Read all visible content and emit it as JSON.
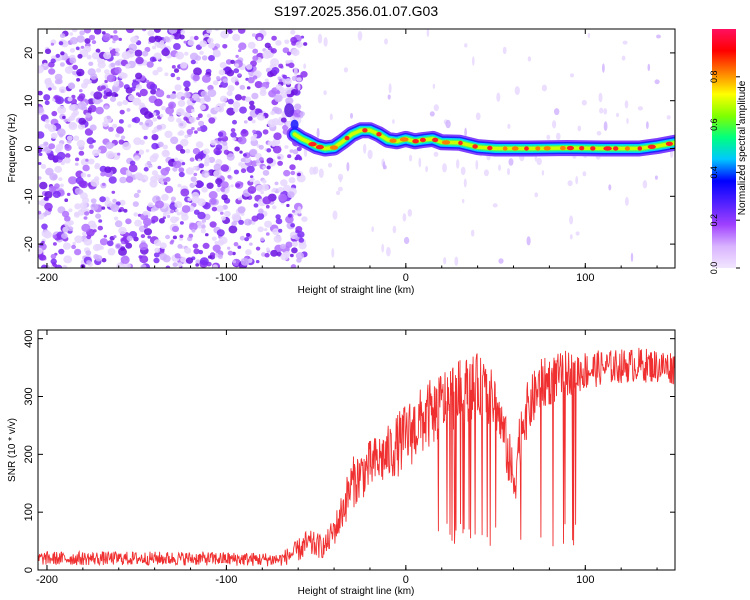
{
  "title": "S197.2025.356.01.07.G03",
  "chart_data": [
    {
      "type": "heatmap",
      "xlabel": "Height of straight line (km)",
      "ylabel": "Frequency (Hz)",
      "xlim": [
        -205,
        150
      ],
      "ylim": [
        -25,
        25
      ],
      "xticks": [
        -200,
        -100,
        0,
        100
      ],
      "yticks": [
        -20,
        -10,
        0,
        10,
        20
      ],
      "noise_region_x": [
        -205,
        -62
      ],
      "ridge": [
        {
          "x": -62,
          "y": 3
        },
        {
          "x": -58,
          "y": 2
        },
        {
          "x": -55,
          "y": 1.5
        },
        {
          "x": -50,
          "y": 0.5
        },
        {
          "x": -45,
          "y": 0
        },
        {
          "x": -40,
          "y": 0.2
        },
        {
          "x": -35,
          "y": 1.5
        },
        {
          "x": -30,
          "y": 3
        },
        {
          "x": -25,
          "y": 3.8
        },
        {
          "x": -20,
          "y": 3.8
        },
        {
          "x": -15,
          "y": 3
        },
        {
          "x": -10,
          "y": 1.8
        },
        {
          "x": -5,
          "y": 1.5
        },
        {
          "x": 0,
          "y": 2
        },
        {
          "x": 5,
          "y": 1.5
        },
        {
          "x": 10,
          "y": 1.8
        },
        {
          "x": 15,
          "y": 2
        },
        {
          "x": 20,
          "y": 1.3
        },
        {
          "x": 30,
          "y": 1.2
        },
        {
          "x": 40,
          "y": 0.3
        },
        {
          "x": 50,
          "y": 0
        },
        {
          "x": 70,
          "y": 0
        },
        {
          "x": 90,
          "y": 0.1
        },
        {
          "x": 110,
          "y": 0
        },
        {
          "x": 130,
          "y": 0
        },
        {
          "x": 140,
          "y": 0.5
        },
        {
          "x": 150,
          "y": 1.2
        }
      ]
    },
    {
      "type": "line",
      "xlabel": "Height of straight line (km)",
      "ylabel": "SNR (10 * v/v)",
      "xlim": [
        -205,
        150
      ],
      "ylim": [
        0,
        415
      ],
      "xticks": [
        -200,
        -100,
        0,
        100
      ],
      "yticks": [
        0,
        100,
        200,
        300,
        400
      ],
      "color": "#f03030",
      "envelope": [
        {
          "x": -205,
          "y": 20,
          "spread": 12
        },
        {
          "x": -120,
          "y": 20,
          "spread": 12
        },
        {
          "x": -70,
          "y": 18,
          "spread": 12
        },
        {
          "x": -62,
          "y": 30,
          "spread": 18
        },
        {
          "x": -55,
          "y": 45,
          "spread": 25
        },
        {
          "x": -45,
          "y": 40,
          "spread": 20
        },
        {
          "x": -38,
          "y": 80,
          "spread": 30
        },
        {
          "x": -30,
          "y": 150,
          "spread": 45
        },
        {
          "x": -20,
          "y": 180,
          "spread": 45
        },
        {
          "x": -10,
          "y": 200,
          "spread": 50
        },
        {
          "x": 0,
          "y": 230,
          "spread": 60
        },
        {
          "x": 10,
          "y": 260,
          "spread": 60
        },
        {
          "x": 25,
          "y": 300,
          "spread": 60
        },
        {
          "x": 40,
          "y": 320,
          "spread": 55
        },
        {
          "x": 50,
          "y": 290,
          "spread": 50
        },
        {
          "x": 55,
          "y": 230,
          "spread": 45
        },
        {
          "x": 60,
          "y": 150,
          "spread": 60
        },
        {
          "x": 65,
          "y": 260,
          "spread": 50
        },
        {
          "x": 75,
          "y": 320,
          "spread": 45
        },
        {
          "x": 90,
          "y": 340,
          "spread": 40
        },
        {
          "x": 110,
          "y": 350,
          "spread": 30
        },
        {
          "x": 130,
          "y": 355,
          "spread": 30
        },
        {
          "x": 150,
          "y": 350,
          "spread": 30
        }
      ],
      "dropout_region_x": [
        15,
        95
      ],
      "dropout_low_y": 40
    }
  ],
  "colorbar": {
    "label": "Normalized spectral amplitude",
    "ticks": [
      0.0,
      0.2,
      0.4,
      0.6,
      0.8
    ],
    "tick_labels": [
      "0.0",
      "0.2",
      "0.4",
      "0.6",
      "0.8"
    ],
    "range": [
      0,
      1
    ],
    "stops": [
      "#f2e6ff",
      "#d9b3ff",
      "#a040ff",
      "#5020ff",
      "#0000ff",
      "#00c8ff",
      "#00ff80",
      "#80ff00",
      "#ffff00",
      "#ff8000",
      "#ff0000",
      "#ff1060"
    ]
  }
}
